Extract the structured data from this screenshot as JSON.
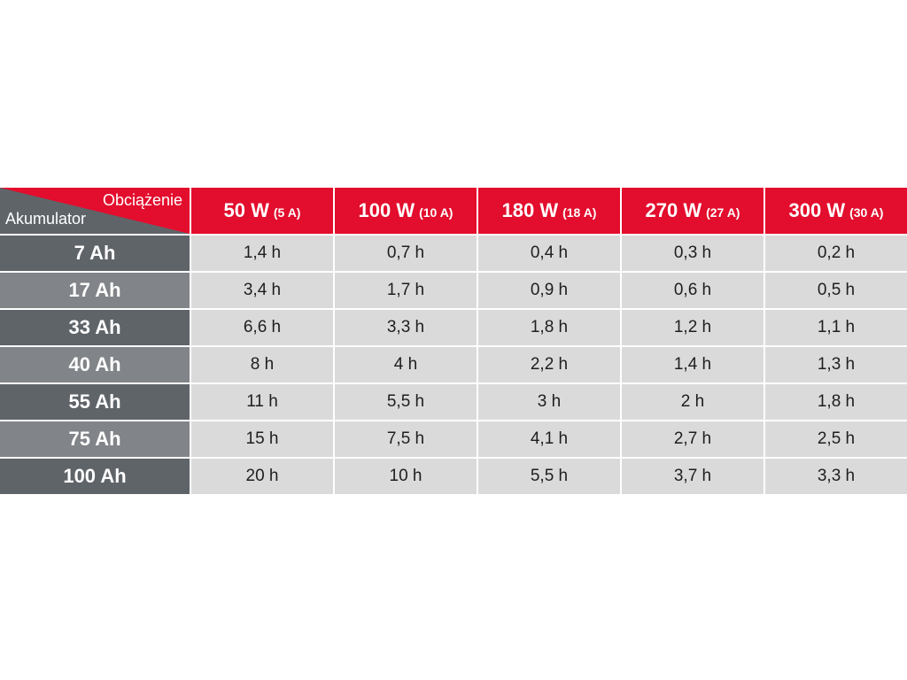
{
  "table": {
    "corner": {
      "top_label": "Obciążenie",
      "bottom_label": "Akumulator"
    },
    "columns": [
      {
        "watts": "50 W",
        "amps": "(5 A)"
      },
      {
        "watts": "100 W",
        "amps": "(10 A)"
      },
      {
        "watts": "180 W",
        "amps": "(18 A)"
      },
      {
        "watts": "270 W",
        "amps": "(27 A)"
      },
      {
        "watts": "300 W",
        "amps": "(30 A)"
      }
    ],
    "rows": [
      {
        "label": "7 Ah",
        "values": [
          "1,4 h",
          "0,7 h",
          "0,4 h",
          "0,3 h",
          "0,2 h"
        ]
      },
      {
        "label": "17 Ah",
        "values": [
          "3,4 h",
          "1,7 h",
          "0,9 h",
          "0,6 h",
          "0,5 h"
        ]
      },
      {
        "label": "33 Ah",
        "values": [
          "6,6 h",
          "3,3 h",
          "1,8 h",
          "1,2 h",
          "1,1 h"
        ]
      },
      {
        "label": "40 Ah",
        "values": [
          "8 h",
          "4 h",
          "2,2 h",
          "1,4 h",
          "1,3 h"
        ]
      },
      {
        "label": "55 Ah",
        "values": [
          "11 h",
          "5,5 h",
          "3 h",
          "2 h",
          "1,8 h"
        ]
      },
      {
        "label": "75 Ah",
        "values": [
          "15 h",
          "7,5 h",
          "4,1 h",
          "2,7 h",
          "2,5 h"
        ]
      },
      {
        "label": "100 Ah",
        "values": [
          "20 h",
          "10 h",
          "5,5 h",
          "3,7 h",
          "3,3 h"
        ]
      }
    ]
  },
  "colors": {
    "header_red": "#e30d2d",
    "row_header_dark": "#5f6469",
    "row_header_light": "#818488",
    "cell_gray": "#dadada"
  }
}
